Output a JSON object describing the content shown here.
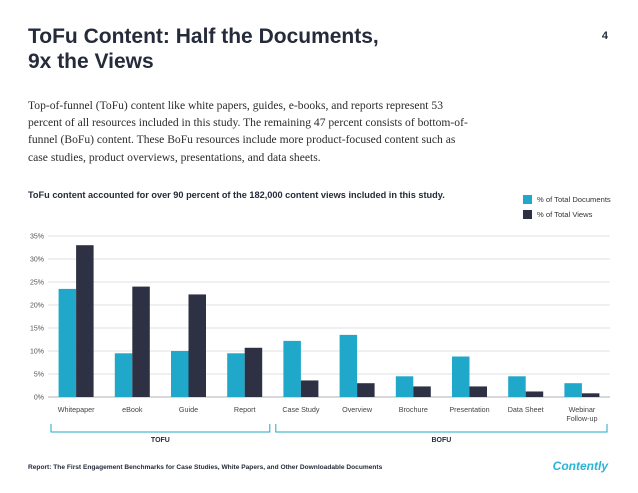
{
  "page": {
    "title_line1": "ToFu Content: Half the Documents,",
    "title_line2": "9x the Views",
    "page_number": "4",
    "body": "Top-of-funnel (ToFu) content like white papers, guides, e-books, and reports represent 53 percent of all resources included in this study. The remaining 47 percent consists of bottom-of-funnel (BoFu) content. These BoFu resources include more product-focused content such as case studies, product overviews, presentations, and data sheets.",
    "chart_caption": "ToFu content accounted for over 90 percent of the 182,000 content views included in this study.",
    "footer": "Report: The First Engagement Benchmarks for Case Studies, White Papers, and Other Downloadable Documents",
    "logo": "Contently"
  },
  "chart_data": {
    "type": "bar",
    "title": "ToFu content accounted for over 90 percent of the 182,000 content views included in this study.",
    "categories": [
      "Whitepaper",
      "eBook",
      "Guide",
      "Report",
      "Case Study",
      "Overview",
      "Brochure",
      "Presentation",
      "Data Sheet",
      "Webinar Follow-up"
    ],
    "series": [
      {
        "name": "% of Total Documents",
        "color": "#1fa8c9",
        "values": [
          23.5,
          9.5,
          10,
          9.5,
          12.2,
          13.5,
          4.5,
          8.8,
          4.5,
          3.0
        ]
      },
      {
        "name": "% of Total Views",
        "color": "#2e3143",
        "values": [
          33,
          24,
          22.3,
          10.7,
          3.6,
          3.0,
          2.3,
          2.3,
          1.2,
          0.8
        ]
      }
    ],
    "yticks": [
      "0%",
      "5%",
      "10%",
      "15%",
      "20%",
      "25%",
      "30%",
      "35%"
    ],
    "ylim": [
      0,
      35
    ],
    "groups": [
      {
        "label": "TOFU",
        "from": 0,
        "to": 3
      },
      {
        "label": "BOFU",
        "from": 4,
        "to": 9
      }
    ],
    "legend_position": "top-right",
    "grid": true
  }
}
